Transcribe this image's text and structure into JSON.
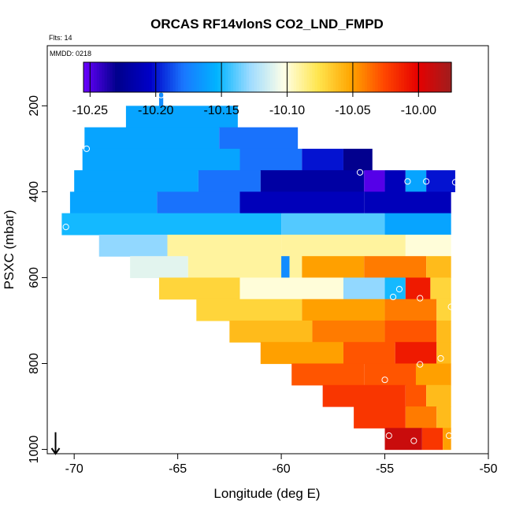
{
  "chart_data": {
    "type": "heatmap",
    "title": "ORCAS RF14vlonS CO2_LND_FMPD",
    "subtitle_left": "Flts: 14",
    "inset_label": "MMDD: 0218",
    "xlabel": "Longitude (deg E)",
    "ylabel": "PSXC (mbar)",
    "xlim": [
      -71.3,
      -50.0
    ],
    "ylim": [
      1010,
      60
    ],
    "xticks": [
      -70,
      -65,
      -60,
      -55,
      -50
    ],
    "yticks": [
      200,
      400,
      600,
      800,
      1000
    ],
    "colorbar": {
      "min": -10.255,
      "max": -9.975,
      "ticks": [
        "-10.25",
        "-10.20",
        "-10.15",
        "-10.10",
        "-10.05",
        "-10.00"
      ],
      "tick_values": [
        -10.25,
        -10.2,
        -10.15,
        -10.1,
        -10.05,
        -10.0
      ],
      "colors": [
        "#6a00ff",
        "#00008c",
        "#0000c8",
        "#1a78ff",
        "#00b4ff",
        "#a0dcff",
        "#ffffe6",
        "#ffe650",
        "#ffa500",
        "#ff4600",
        "#e60000",
        "#a01e1e"
      ]
    },
    "layers": [
      {
        "p": 175,
        "xmin": -65.9,
        "xmax": -65.7,
        "segments": [
          {
            "to": -65.7,
            "v": -10.17
          }
        ]
      },
      {
        "p": 225,
        "xmin": -67.5,
        "xmax": -62.1,
        "segments": [
          {
            "to": -62.1,
            "v": -10.16
          }
        ]
      },
      {
        "p": 275,
        "xmin": -69.5,
        "xmax": -59.2,
        "segments": [
          {
            "to": -63.0,
            "v": -10.16
          },
          {
            "to": -59.2,
            "v": -10.18
          }
        ]
      },
      {
        "p": 325,
        "xmin": -69.6,
        "xmax": -55.6,
        "segments": [
          {
            "to": -62.0,
            "v": -10.16
          },
          {
            "to": -59.0,
            "v": -10.18
          },
          {
            "to": -57.0,
            "v": -10.2
          },
          {
            "to": -55.6,
            "v": -10.23
          }
        ]
      },
      {
        "p": 375,
        "xmin": -70.0,
        "xmax": -51.6,
        "segments": [
          {
            "to": -64.0,
            "v": -10.16
          },
          {
            "to": -61.0,
            "v": -10.18
          },
          {
            "to": -56.0,
            "v": -10.22
          },
          {
            "to": -55.0,
            "v": -10.25
          },
          {
            "to": -54.0,
            "v": -10.21
          },
          {
            "to": -53.0,
            "v": -10.16
          },
          {
            "to": -51.6,
            "v": -10.2
          }
        ]
      },
      {
        "p": 425,
        "xmin": -70.2,
        "xmax": -51.8,
        "segments": [
          {
            "to": -66.0,
            "v": -10.16
          },
          {
            "to": -62.0,
            "v": -10.18
          },
          {
            "to": -56.0,
            "v": -10.21
          },
          {
            "to": -51.8,
            "v": -10.21
          }
        ]
      },
      {
        "p": 475,
        "xmin": -70.6,
        "xmax": -51.8,
        "segments": [
          {
            "to": -60.0,
            "v": -10.15
          },
          {
            "to": -55.0,
            "v": -10.14
          },
          {
            "to": -51.8,
            "v": -10.16
          }
        ]
      },
      {
        "p": 525,
        "xmin": -68.8,
        "xmax": -51.8,
        "segments": [
          {
            "to": -65.5,
            "v": -10.13
          },
          {
            "to": -60.0,
            "v": -10.09
          },
          {
            "to": -54.0,
            "v": -10.09
          },
          {
            "to": -51.8,
            "v": -10.1
          }
        ]
      },
      {
        "p": 575,
        "xmin": -67.3,
        "xmax": -51.8,
        "segments": [
          {
            "to": -64.5,
            "v": -10.11
          },
          {
            "to": -60.0,
            "v": -10.09
          },
          {
            "to": -59.6,
            "v": -10.17
          },
          {
            "to": -59.0,
            "v": -10.09
          },
          {
            "to": -56.0,
            "v": -10.05
          },
          {
            "to": -53.0,
            "v": -10.04
          },
          {
            "to": -51.8,
            "v": -10.06
          }
        ]
      },
      {
        "p": 625,
        "xmin": -65.9,
        "xmax": -51.8,
        "segments": [
          {
            "to": -62.0,
            "v": -10.07
          },
          {
            "to": -57.0,
            "v": -10.1
          },
          {
            "to": -55.0,
            "v": -10.13
          },
          {
            "to": -54.0,
            "v": -10.15
          },
          {
            "to": -52.8,
            "v": -10.01
          },
          {
            "to": -51.8,
            "v": -10.07
          }
        ]
      },
      {
        "p": 675,
        "xmin": -64.1,
        "xmax": -51.8,
        "segments": [
          {
            "to": -59.0,
            "v": -10.07
          },
          {
            "to": -55.0,
            "v": -10.05
          },
          {
            "to": -52.5,
            "v": -10.04
          },
          {
            "to": -51.8,
            "v": -10.07
          }
        ]
      },
      {
        "p": 725,
        "xmin": -62.5,
        "xmax": -51.8,
        "segments": [
          {
            "to": -58.5,
            "v": -10.06
          },
          {
            "to": -55.0,
            "v": -10.04
          },
          {
            "to": -52.5,
            "v": -10.03
          },
          {
            "to": -51.8,
            "v": -10.06
          }
        ]
      },
      {
        "p": 775,
        "xmin": -61.0,
        "xmax": -51.8,
        "segments": [
          {
            "to": -57.0,
            "v": -10.05
          },
          {
            "to": -54.5,
            "v": -10.03
          },
          {
            "to": -52.5,
            "v": -10.01
          },
          {
            "to": -51.8,
            "v": -10.06
          }
        ]
      },
      {
        "p": 825,
        "xmin": -59.5,
        "xmax": -51.8,
        "segments": [
          {
            "to": -56.0,
            "v": -10.03
          },
          {
            "to": -53.5,
            "v": -10.03
          },
          {
            "to": -51.8,
            "v": -10.05
          }
        ]
      },
      {
        "p": 875,
        "xmin": -58.0,
        "xmax": -51.8,
        "segments": [
          {
            "to": -54.0,
            "v": -10.02
          },
          {
            "to": -53.0,
            "v": -10.03
          },
          {
            "to": -51.8,
            "v": -10.06
          }
        ]
      },
      {
        "p": 925,
        "xmin": -56.5,
        "xmax": -51.8,
        "segments": [
          {
            "to": -54.0,
            "v": -10.02
          },
          {
            "to": -52.5,
            "v": -10.04
          },
          {
            "to": -51.8,
            "v": -10.06
          }
        ]
      },
      {
        "p": 975,
        "xmin": -55.0,
        "xmax": -51.8,
        "segments": [
          {
            "to": -53.2,
            "v": -9.99
          },
          {
            "to": -52.2,
            "v": -10.02
          },
          {
            "to": -51.8,
            "v": -10.05
          }
        ]
      }
    ],
    "flight_points": [
      {
        "lon": -65.8,
        "p": 175
      },
      {
        "lon": -69.4,
        "p": 300
      },
      {
        "lon": -56.2,
        "p": 355
      },
      {
        "lon": -53.9,
        "p": 376
      },
      {
        "lon": -53.0,
        "p": 376
      },
      {
        "lon": -51.6,
        "p": 378
      },
      {
        "lon": -70.4,
        "p": 482
      },
      {
        "lon": -54.3,
        "p": 627
      },
      {
        "lon": -54.6,
        "p": 645
      },
      {
        "lon": -53.3,
        "p": 648
      },
      {
        "lon": -51.8,
        "p": 668
      },
      {
        "lon": -53.3,
        "p": 802
      },
      {
        "lon": -52.3,
        "p": 788
      },
      {
        "lon": -55.0,
        "p": 838
      },
      {
        "lon": -54.8,
        "p": 968
      },
      {
        "lon": -53.6,
        "p": 980
      },
      {
        "lon": -51.9,
        "p": 968
      }
    ],
    "arrow": {
      "lon": -70.9,
      "p_from": 960,
      "p_to": 1010
    }
  }
}
